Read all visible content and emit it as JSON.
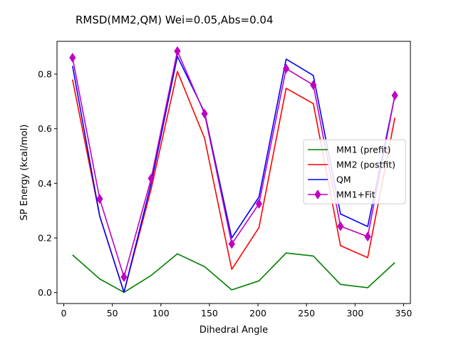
{
  "chart_data": {
    "type": "line",
    "title": "RMSD(MM2,QM) Wei=0.05,Abs=0.04",
    "xlabel": "Dihedral Angle",
    "ylabel": "SP Energy (kcal/mol)",
    "xlim": [
      -7,
      357
    ],
    "ylim": [
      -0.04,
      0.92
    ],
    "xticks": [
      0,
      50,
      100,
      150,
      200,
      250,
      300,
      350
    ],
    "yticks": [
      0.0,
      0.2,
      0.4,
      0.6,
      0.8
    ],
    "xtick_labels": [
      "0",
      "50",
      "100",
      "150",
      "200",
      "250",
      "300",
      "350"
    ],
    "ytick_labels": [
      "0.0",
      "0.2",
      "0.4",
      "0.6",
      "0.8"
    ],
    "grid": false,
    "legend_position": "center-right",
    "x": [
      9,
      37,
      62,
      90,
      117,
      145,
      173,
      201,
      229,
      257,
      285,
      313,
      341
    ],
    "series": [
      {
        "name": "MM1 (prefit)",
        "color": "#008000",
        "marker": "none",
        "values": [
          0.138,
          0.05,
          0.001,
          0.063,
          0.142,
          0.095,
          0.01,
          0.043,
          0.145,
          0.134,
          0.03,
          0.018,
          0.11
        ]
      },
      {
        "name": "MM2 (postfit)",
        "color": "#ff0000",
        "marker": "none",
        "values": [
          0.78,
          0.28,
          0.001,
          0.38,
          0.81,
          0.565,
          0.085,
          0.238,
          0.748,
          0.692,
          0.172,
          0.128,
          0.64
        ]
      },
      {
        "name": "QM",
        "color": "#0000ff",
        "marker": "none",
        "values": [
          0.83,
          0.28,
          0.001,
          0.4,
          0.865,
          0.66,
          0.2,
          0.35,
          0.855,
          0.795,
          0.288,
          0.242,
          0.72
        ]
      },
      {
        "name": "MM1+Fit",
        "color": "#bf00bf",
        "marker": "diamond",
        "values": [
          0.86,
          0.343,
          0.057,
          0.418,
          0.884,
          0.655,
          0.178,
          0.325,
          0.82,
          0.76,
          0.243,
          0.205,
          0.722
        ]
      }
    ]
  }
}
